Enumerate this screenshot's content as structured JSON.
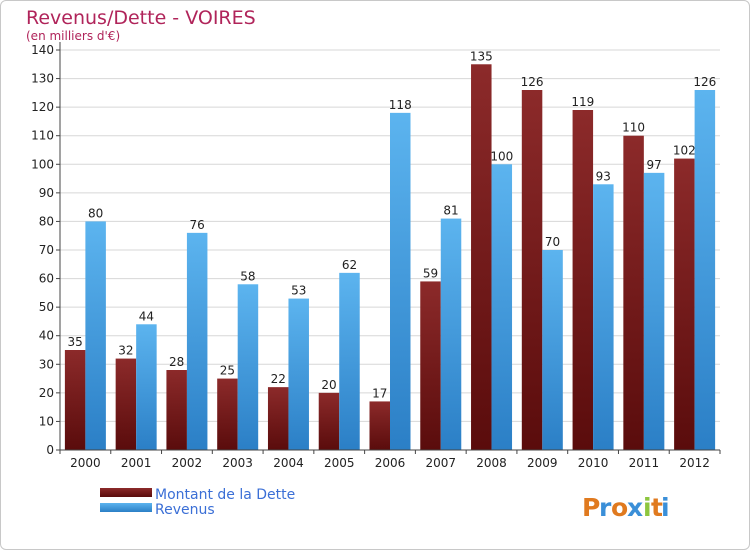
{
  "chart_data": {
    "type": "bar",
    "title": "Revenus/Dette - VOIRES",
    "subtitle": "(en milliers d'€)",
    "categories": [
      "2000",
      "2001",
      "2002",
      "2003",
      "2004",
      "2005",
      "2006",
      "2007",
      "2008",
      "2009",
      "2010",
      "2011",
      "2012"
    ],
    "series": [
      {
        "name": "Montant de la Dette",
        "color": "#7b1a1a",
        "values": [
          35,
          32,
          28,
          25,
          22,
          20,
          17,
          59,
          135,
          126,
          119,
          110,
          102
        ]
      },
      {
        "name": "Revenus",
        "color": "#3f9be2",
        "values": [
          80,
          44,
          76,
          58,
          53,
          62,
          118,
          81,
          100,
          70,
          93,
          97,
          126
        ]
      }
    ],
    "ylim": [
      0,
      140
    ],
    "yticks": [
      0,
      10,
      20,
      30,
      40,
      50,
      60,
      70,
      80,
      90,
      100,
      110,
      120,
      130,
      140
    ],
    "grid": true,
    "legend_position": "bottom-left"
  },
  "logo": {
    "letters": [
      "P",
      "r",
      "o",
      "x",
      "i",
      "t",
      "i"
    ],
    "colors": [
      "#e07a1f",
      "#3a8fd8",
      "#e07a1f",
      "#3a8fd8",
      "#8dc63f",
      "#e07a1f",
      "#3a8fd8"
    ]
  }
}
